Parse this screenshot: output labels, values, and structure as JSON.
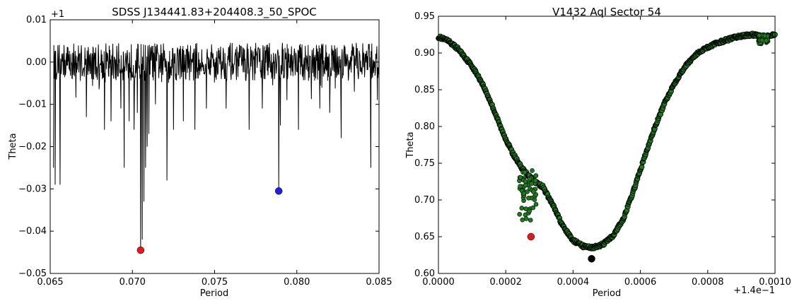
{
  "chart_data": [
    {
      "type": "line",
      "title": "SDSS J134441.83+204408.3_50_SPOC",
      "xlabel": "Period",
      "ylabel": "Theta",
      "offset_label": "+1",
      "xlim": [
        0.065,
        0.085
      ],
      "ylim": [
        -0.05,
        0.01
      ],
      "xticks": [
        0.065,
        0.07,
        0.075,
        0.08,
        0.085
      ],
      "xtick_labels": [
        "0.065",
        "0.070",
        "0.075",
        "0.080",
        "0.085"
      ],
      "yticks": [
        0.01,
        0.0,
        -0.01,
        -0.02,
        -0.03,
        -0.04,
        -0.05
      ],
      "ytick_labels": [
        "0.01",
        "0.00",
        "−0.01",
        "−0.02",
        "−0.03",
        "−0.04",
        "−0.05"
      ],
      "grid": false,
      "line_color": "#000000",
      "baseline": {
        "mean": 0.0005,
        "noise_amplitude": 0.0045,
        "x_start": 0.0652,
        "x_end": 0.085
      },
      "dips": [
        {
          "x": 0.0652,
          "y": -0.025
        },
        {
          "x": 0.0653,
          "y": -0.029
        },
        {
          "x": 0.0656,
          "y": -0.029
        },
        {
          "x": 0.0672,
          "y": -0.013
        },
        {
          "x": 0.0683,
          "y": -0.016
        },
        {
          "x": 0.0687,
          "y": -0.014
        },
        {
          "x": 0.0693,
          "y": -0.011
        },
        {
          "x": 0.0695,
          "y": -0.025
        },
        {
          "x": 0.0698,
          "y": -0.014
        },
        {
          "x": 0.0701,
          "y": -0.016
        },
        {
          "x": 0.0703,
          "y": -0.012
        },
        {
          "x": 0.0705,
          "y": -0.0445
        },
        {
          "x": 0.0706,
          "y": -0.042
        },
        {
          "x": 0.0707,
          "y": -0.033
        },
        {
          "x": 0.0708,
          "y": -0.025
        },
        {
          "x": 0.0709,
          "y": -0.02
        },
        {
          "x": 0.071,
          "y": -0.017
        },
        {
          "x": 0.0714,
          "y": -0.01
        },
        {
          "x": 0.0721,
          "y": -0.028
        },
        {
          "x": 0.0725,
          "y": -0.016
        },
        {
          "x": 0.0731,
          "y": -0.014
        },
        {
          "x": 0.0738,
          "y": -0.016
        },
        {
          "x": 0.0745,
          "y": -0.011
        },
        {
          "x": 0.0757,
          "y": -0.011
        },
        {
          "x": 0.0771,
          "y": -0.016
        },
        {
          "x": 0.0779,
          "y": -0.011
        },
        {
          "x": 0.0789,
          "y": -0.0305
        },
        {
          "x": 0.079,
          "y": -0.015
        },
        {
          "x": 0.0794,
          "y": -0.009
        },
        {
          "x": 0.0801,
          "y": -0.016
        },
        {
          "x": 0.0814,
          "y": -0.011
        },
        {
          "x": 0.082,
          "y": -0.012
        },
        {
          "x": 0.0827,
          "y": -0.018
        },
        {
          "x": 0.0835,
          "y": -0.007
        },
        {
          "x": 0.0845,
          "y": -0.025
        },
        {
          "x": 0.0849,
          "y": -0.009
        }
      ],
      "markers": [
        {
          "x": 0.0705,
          "y": -0.0445,
          "color": "#e31a1c"
        },
        {
          "x": 0.0789,
          "y": -0.0305,
          "color": "#1f1fe0"
        }
      ]
    },
    {
      "type": "scatter",
      "title": "V1432 Aql Sector 54",
      "xlabel": "Period",
      "ylabel": "Theta",
      "offset_label": "+1.4e−1",
      "xlim": [
        0.0,
        0.001
      ],
      "ylim": [
        0.6,
        0.95
      ],
      "xticks": [
        0.0,
        0.0002,
        0.0004,
        0.0006,
        0.0008,
        0.001
      ],
      "xtick_labels": [
        "0.0000",
        "0.0002",
        "0.0004",
        "0.0006",
        "0.0008",
        "0.0010"
      ],
      "yticks": [
        0.95,
        0.9,
        0.85,
        0.8,
        0.75,
        0.7,
        0.65,
        0.6
      ],
      "ytick_labels": [
        "0.95",
        "0.90",
        "0.85",
        "0.80",
        "0.75",
        "0.70",
        "0.65",
        "0.60"
      ],
      "grid": false,
      "point_fill": "#1f7a1f",
      "point_edge": "#000000",
      "curve": [
        {
          "x": 0.0,
          "y": 0.922
        },
        {
          "x": 3e-05,
          "y": 0.916
        },
        {
          "x": 6e-05,
          "y": 0.905
        },
        {
          "x": 0.0001,
          "y": 0.882
        },
        {
          "x": 0.00013,
          "y": 0.859
        },
        {
          "x": 0.00016,
          "y": 0.828
        },
        {
          "x": 0.00019,
          "y": 0.793
        },
        {
          "x": 0.00022,
          "y": 0.764
        },
        {
          "x": 0.00025,
          "y": 0.742
        },
        {
          "x": 0.00028,
          "y": 0.727
        },
        {
          "x": 0.00031,
          "y": 0.718
        },
        {
          "x": 0.00034,
          "y": 0.693
        },
        {
          "x": 0.00037,
          "y": 0.664
        },
        {
          "x": 0.0004,
          "y": 0.645
        },
        {
          "x": 0.00043,
          "y": 0.637
        },
        {
          "x": 0.00046,
          "y": 0.635
        },
        {
          "x": 0.00049,
          "y": 0.64
        },
        {
          "x": 0.00052,
          "y": 0.652
        },
        {
          "x": 0.00055,
          "y": 0.675
        },
        {
          "x": 0.00058,
          "y": 0.713
        },
        {
          "x": 0.00061,
          "y": 0.755
        },
        {
          "x": 0.00064,
          "y": 0.795
        },
        {
          "x": 0.00067,
          "y": 0.83
        },
        {
          "x": 0.0007,
          "y": 0.858
        },
        {
          "x": 0.00073,
          "y": 0.88
        },
        {
          "x": 0.00076,
          "y": 0.896
        },
        {
          "x": 0.00079,
          "y": 0.906
        },
        {
          "x": 0.00082,
          "y": 0.912
        },
        {
          "x": 0.00085,
          "y": 0.917
        },
        {
          "x": 0.00088,
          "y": 0.921
        },
        {
          "x": 0.00091,
          "y": 0.924
        },
        {
          "x": 0.00094,
          "y": 0.925
        },
        {
          "x": 0.00097,
          "y": 0.922
        },
        {
          "x": 0.001,
          "y": 0.925
        }
      ],
      "scatter_features": [
        {
          "x_min": 0.00024,
          "x_max": 0.00029,
          "y_min": 0.665,
          "y_max": 0.74
        },
        {
          "x_min": 0.00095,
          "x_max": 0.00098,
          "y_min": 0.91,
          "y_max": 0.925
        }
      ],
      "markers": [
        {
          "x": 0.000275,
          "y": 0.65,
          "color": "#e31a1c"
        },
        {
          "x": 0.000455,
          "y": 0.62,
          "color": "#000000"
        }
      ]
    }
  ]
}
